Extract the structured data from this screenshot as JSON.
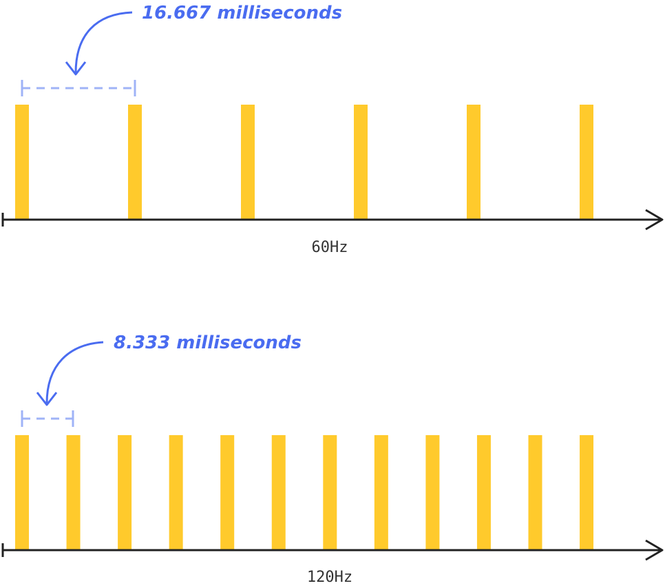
{
  "top": {
    "interval_label": "16.667 milliseconds",
    "rate_label": "60Hz"
  },
  "bottom": {
    "interval_label": "8.333 milliseconds",
    "rate_label": "120Hz"
  }
}
